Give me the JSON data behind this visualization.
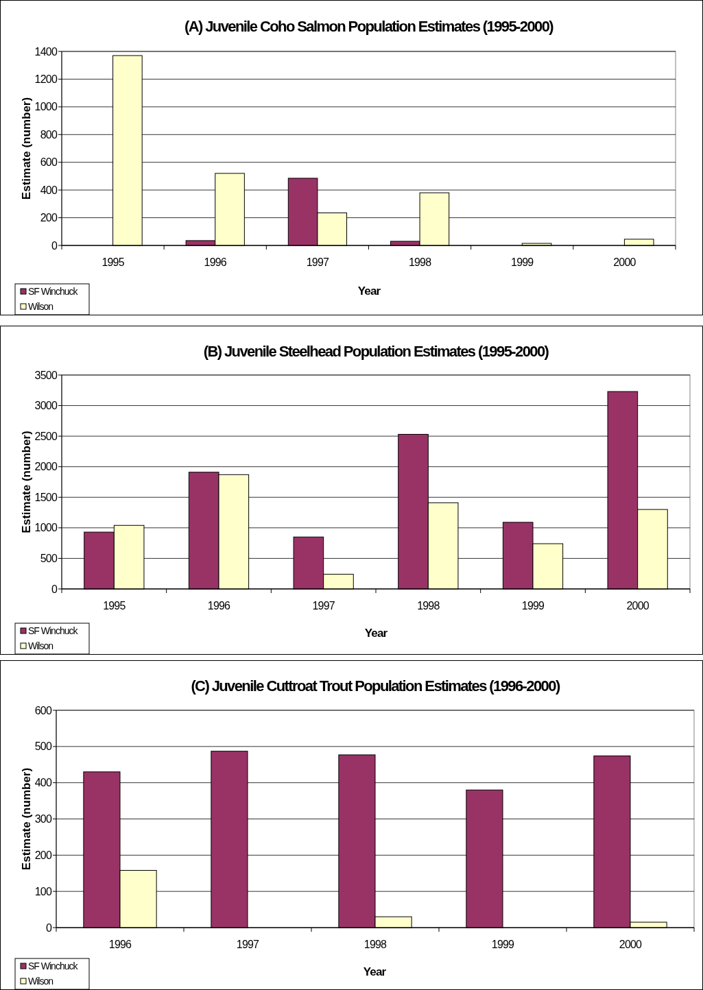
{
  "chart_data": [
    {
      "type": "bar",
      "title": "(A) Juvenile Coho Salmon Population Estimates (1995-2000)",
      "xlabel": "Year",
      "ylabel": "Estimate (number)",
      "categories": [
        "1995",
        "1996",
        "1997",
        "1998",
        "1999",
        "2000"
      ],
      "series": [
        {
          "name": "SF Winchuck",
          "color": "#993366",
          "values": [
            0,
            35,
            485,
            30,
            0,
            0
          ]
        },
        {
          "name": "Wilson",
          "color": "#ffffcc",
          "values": [
            1370,
            520,
            235,
            380,
            15,
            45
          ]
        }
      ],
      "ylim": [
        0,
        1400
      ],
      "yticks": [
        0,
        200,
        400,
        600,
        800,
        1000,
        1200,
        1400
      ],
      "grid": "y",
      "legend": "bottom left"
    },
    {
      "type": "bar",
      "title": "(B) Juvenile Steelhead Population Estimates (1995-2000)",
      "xlabel": "Year",
      "ylabel": "Estimate (number)",
      "categories": [
        "1995",
        "1996",
        "1997",
        "1998",
        "1999",
        "2000"
      ],
      "series": [
        {
          "name": "SF Winchuck",
          "color": "#993366",
          "values": [
            930,
            1910,
            850,
            2530,
            1090,
            3230
          ]
        },
        {
          "name": "Wilson",
          "color": "#ffffcc",
          "values": [
            1040,
            1870,
            240,
            1410,
            740,
            1300
          ]
        }
      ],
      "ylim": [
        0,
        3500
      ],
      "yticks": [
        0,
        500,
        1000,
        1500,
        2000,
        2500,
        3000,
        3500
      ],
      "grid": "y",
      "legend": "bottom left"
    },
    {
      "type": "bar",
      "title": "(C) Juvenile Cuttroat Trout Population Estimates (1996-2000)",
      "xlabel": "Year",
      "ylabel": "Estimate (number)",
      "categories": [
        "1996",
        "1997",
        "1998",
        "1999",
        "2000"
      ],
      "series": [
        {
          "name": "SF Winchuck",
          "color": "#993366",
          "values": [
            430,
            487,
            477,
            380,
            474
          ]
        },
        {
          "name": "Wilson",
          "color": "#ffffcc",
          "values": [
            158,
            0,
            30,
            0,
            15
          ]
        }
      ],
      "ylim": [
        0,
        600
      ],
      "yticks": [
        0,
        100,
        200,
        300,
        400,
        500,
        600
      ],
      "grid": "y",
      "legend": "bottom left"
    }
  ]
}
